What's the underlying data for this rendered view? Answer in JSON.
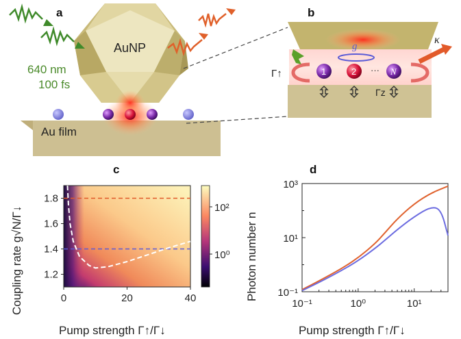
{
  "panel_a": {
    "label": "a",
    "particle_label": "AuNP",
    "wavelength": "640 nm",
    "pulse": "100 fs",
    "film_label": "Au film"
  },
  "panel_b": {
    "label": "b",
    "pump_symbol": "Γ↑",
    "coupling_symbol": "g",
    "loss_symbol": "κ",
    "dephasing_symbol": "Γz",
    "emitters": [
      "1",
      "2",
      "N"
    ],
    "ellipsis": "···"
  },
  "panel_c": {
    "label": "c",
    "xlabel": "Pump strength Γ↑/Γ↓",
    "ylabel": "Coupling rate g√N/Γ↓",
    "xticks": [
      "0",
      "20",
      "40"
    ],
    "yticks": [
      "1.2",
      "1.4",
      "1.6",
      "1.8"
    ],
    "colorbar_ticks": [
      "10²",
      "10⁰"
    ],
    "colors": {
      "high": "#fdf1b8",
      "mid": "#f07a52",
      "low": "#1b0c3d",
      "hline_upper": "#e05a2a",
      "hline_lower": "#5a5ad8"
    }
  },
  "panel_d": {
    "label": "d",
    "xlabel": "Pump strength Γ↑/Γ↓",
    "ylabel": "Photon number n",
    "xticks": [
      "10⁻¹",
      "10⁰",
      "10¹"
    ],
    "yticks": [
      "10⁻¹",
      "10¹",
      "10³"
    ],
    "colors": {
      "upper_curve": "#e0622e",
      "lower_curve": "#6b6be0"
    }
  },
  "chart_data": [
    {
      "type": "heatmap",
      "title": "",
      "xlabel": "Pump strength Γ↑/Γ↓",
      "ylabel": "Coupling rate g√N/Γ↓",
      "xlim": [
        0,
        40
      ],
      "ylim": [
        1.1,
        1.9
      ],
      "colorbar_scale": "log",
      "colorbar_ticks": [
        "10⁰",
        "10²"
      ],
      "threshold_curve": {
        "x": [
          1.2,
          1.5,
          2,
          3,
          5,
          8,
          10,
          14,
          20,
          26,
          32,
          40
        ],
        "y": [
          1.9,
          1.75,
          1.6,
          1.46,
          1.34,
          1.27,
          1.25,
          1.26,
          1.3,
          1.35,
          1.4,
          1.46
        ]
      },
      "guides": [
        {
          "orientation": "horizontal",
          "y": 1.8,
          "color": "#e05a2a"
        },
        {
          "orientation": "horizontal",
          "y": 1.4,
          "color": "#5a5ad8"
        }
      ]
    },
    {
      "type": "line",
      "title": "",
      "xlabel": "Pump strength Γ↑/Γ↓",
      "ylabel": "Photon number n",
      "xscale": "log",
      "yscale": "log",
      "xlim": [
        0.1,
        40
      ],
      "ylim": [
        0.1,
        1000
      ],
      "series": [
        {
          "color": "#e0622e",
          "x": [
            0.1,
            0.2,
            0.5,
            1,
            2,
            3,
            5,
            10,
            20,
            40
          ],
          "y": [
            0.12,
            0.25,
            0.7,
            1.8,
            6,
            15,
            50,
            180,
            450,
            800
          ]
        },
        {
          "color": "#6b6be0",
          "x": [
            0.1,
            0.2,
            0.5,
            1,
            2,
            3,
            5,
            10,
            20,
            30,
            40
          ],
          "y": [
            0.11,
            0.22,
            0.6,
            1.4,
            4,
            8,
            20,
            60,
            140,
            110,
            12
          ]
        }
      ]
    }
  ]
}
